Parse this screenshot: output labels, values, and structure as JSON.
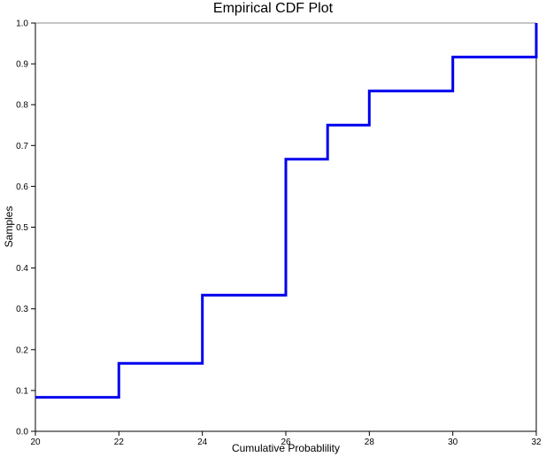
{
  "chart": {
    "title": "Empirical CDF Plot",
    "xlabel": "Cumulative Probablility",
    "ylabel": "Samples"
  },
  "chart_data": {
    "type": "line",
    "subtype": "ecdf-step",
    "title": "Empirical CDF Plot",
    "xlabel": "Cumulative Probablility",
    "ylabel": "Samples",
    "xlim": [
      20,
      32
    ],
    "ylim": [
      0.0,
      1.0
    ],
    "xtick_labels": [
      "20",
      "22",
      "24",
      "26",
      "28",
      "30",
      "32"
    ],
    "ytick_labels": [
      "0.0",
      "0.1",
      "0.2",
      "0.3",
      "0.4",
      "0.5",
      "0.6",
      "0.7",
      "0.8",
      "0.9",
      "1.0"
    ],
    "grid": false,
    "legend": null,
    "line_color": "#0000ee",
    "line_width": 3,
    "axis_color": "#000000",
    "frame_top_color": "#8c8c8c",
    "text_color": "#000000",
    "points": [
      [
        20,
        0.0833
      ],
      [
        22,
        0.0833
      ],
      [
        22,
        0.1667
      ],
      [
        24,
        0.1667
      ],
      [
        24,
        0.3333
      ],
      [
        26,
        0.3333
      ],
      [
        26,
        0.6667
      ],
      [
        27,
        0.6667
      ],
      [
        27,
        0.75
      ],
      [
        28,
        0.75
      ],
      [
        28,
        0.8333
      ],
      [
        30,
        0.8333
      ],
      [
        30,
        0.9167
      ],
      [
        32,
        0.9167
      ],
      [
        32,
        1.0
      ]
    ]
  }
}
